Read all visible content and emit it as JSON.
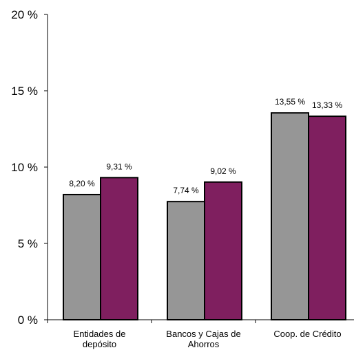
{
  "chart_data": {
    "type": "bar",
    "categories": [
      [
        "Entidades de",
        "depósito"
      ],
      [
        "Bancos y Cajas de",
        "Ahorros"
      ],
      [
        "Coop. de Crédito"
      ]
    ],
    "series": [
      {
        "values": [
          8.2,
          7.74,
          13.55
        ],
        "labels": [
          "8,20 %",
          "7,74 %",
          "13,55 %"
        ],
        "color": "#969696"
      },
      {
        "values": [
          9.31,
          9.02,
          13.33
        ],
        "labels": [
          "9,31 %",
          "9,02 %",
          "13,33 %"
        ],
        "color": "#7f1f5f"
      }
    ],
    "ylim": [
      0,
      20
    ],
    "yticks": [
      {
        "value": 0,
        "label": "0 %"
      },
      {
        "value": 5,
        "label": "5 %"
      },
      {
        "value": 10,
        "label": "10 %"
      },
      {
        "value": 15,
        "label": "15 %"
      },
      {
        "value": 20,
        "label": "20 %"
      }
    ],
    "grid": false,
    "legend": "none"
  }
}
